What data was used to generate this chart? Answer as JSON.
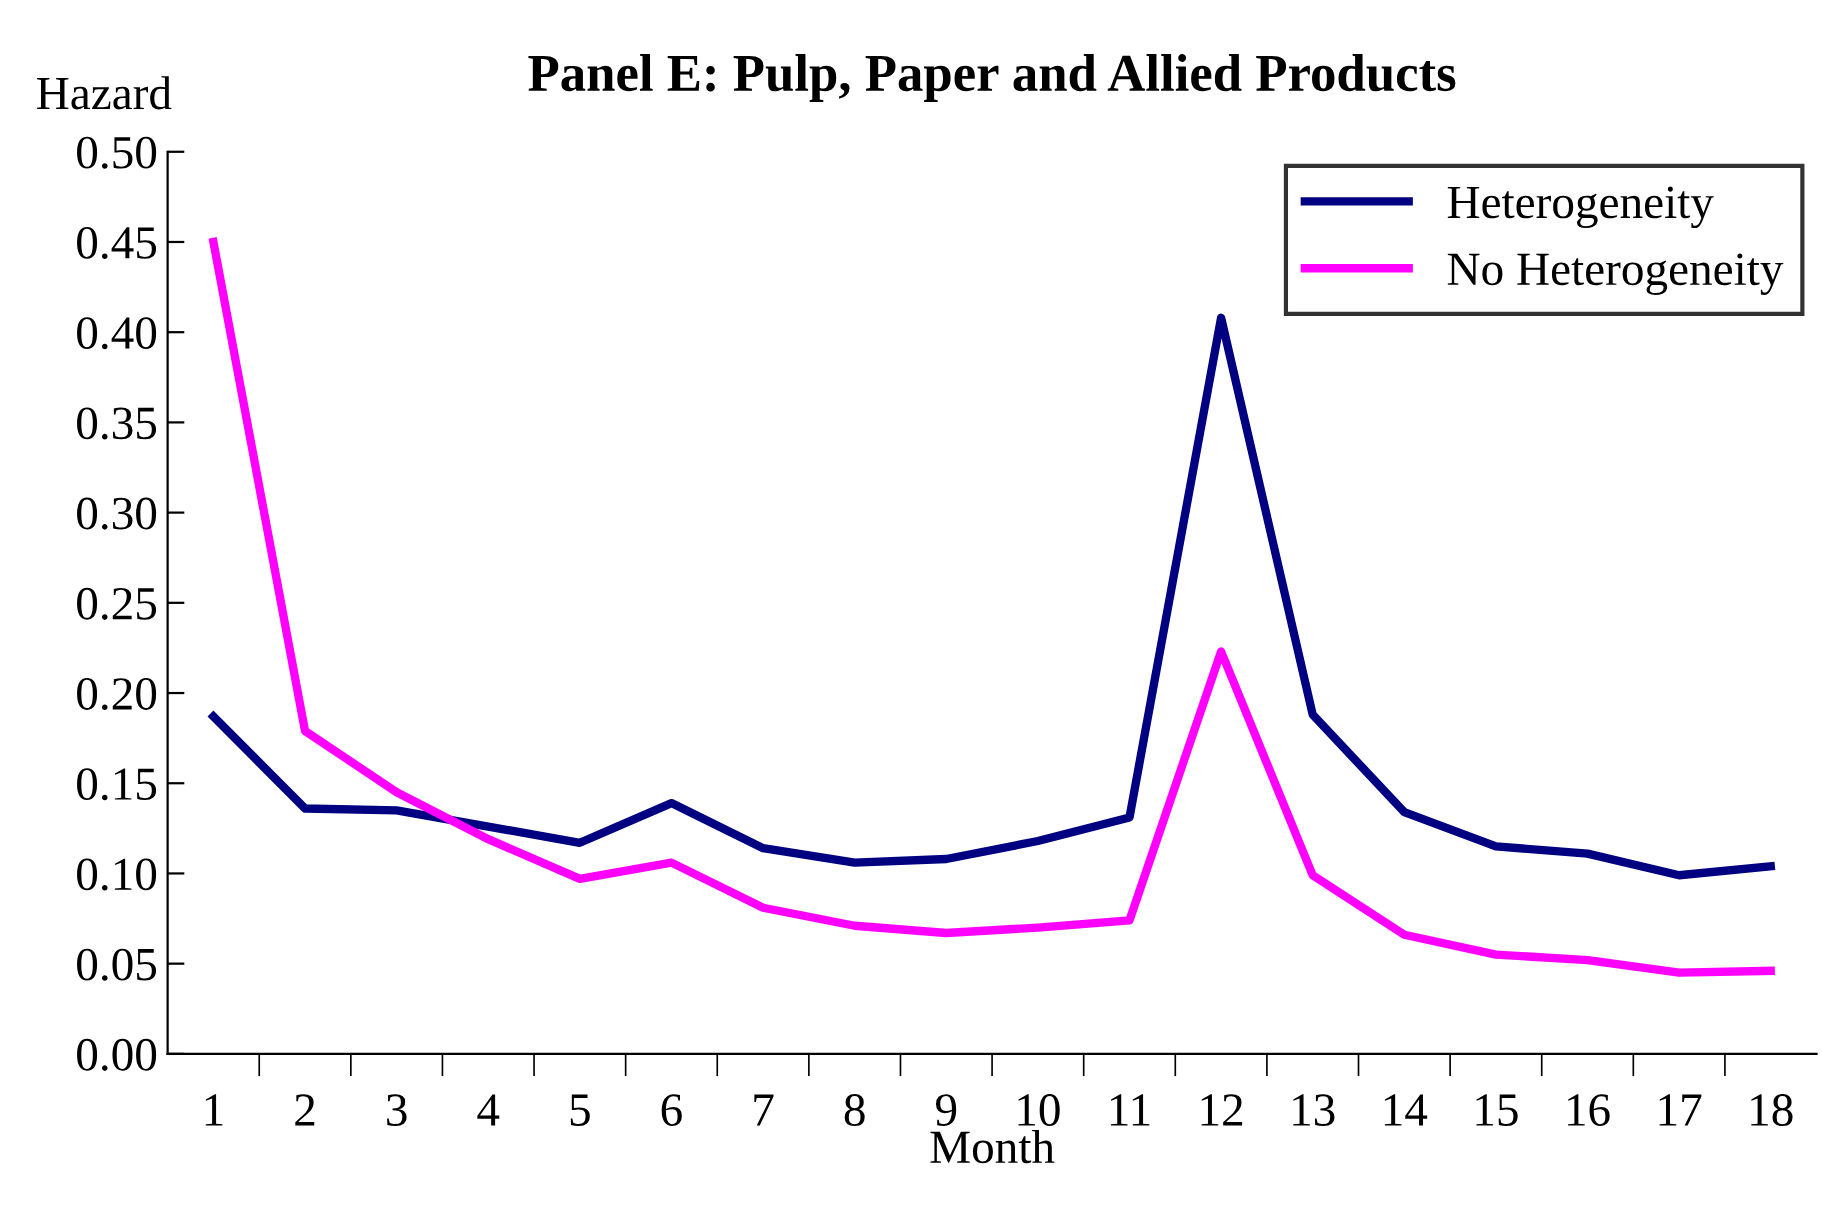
{
  "chart_data": {
    "type": "line",
    "title": "Panel E: Pulp, Paper and Allied Products",
    "ylabel": "Hazard",
    "xlabel": "Month",
    "categories": [
      "1",
      "2",
      "3",
      "4",
      "5",
      "6",
      "7",
      "8",
      "9",
      "10",
      "11",
      "12",
      "13",
      "14",
      "15",
      "16",
      "17",
      "18"
    ],
    "series": [
      {
        "name": "Heterogeneity",
        "color": "#000080",
        "values": [
          0.187,
          0.136,
          0.135,
          0.126,
          0.117,
          0.139,
          0.114,
          0.106,
          0.108,
          0.118,
          0.131,
          0.408,
          0.188,
          0.134,
          0.115,
          0.111,
          0.099,
          0.104
        ]
      },
      {
        "name": "No Heterogeneity",
        "color": "#ff00ff",
        "values": [
          0.45,
          0.179,
          0.145,
          0.119,
          0.097,
          0.106,
          0.081,
          0.071,
          0.067,
          0.07,
          0.074,
          0.223,
          0.099,
          0.066,
          0.055,
          0.052,
          0.045,
          0.046
        ]
      }
    ],
    "ylim": [
      0,
      0.5
    ],
    "yticks": [
      {
        "value": 0,
        "label": "0.00"
      },
      {
        "value": 0.05,
        "label": "0.05"
      },
      {
        "value": 0.1,
        "label": "0.10"
      },
      {
        "value": 0.15,
        "label": "0.15"
      },
      {
        "value": 0.2,
        "label": "0.20"
      },
      {
        "value": 0.25,
        "label": "0.25"
      },
      {
        "value": 0.3,
        "label": "0.30"
      },
      {
        "value": 0.35,
        "label": "0.35"
      },
      {
        "value": 0.4,
        "label": "0.40"
      },
      {
        "value": 0.45,
        "label": "0.45"
      },
      {
        "value": 0.5,
        "label": "0.50"
      }
    ],
    "grid": false,
    "legend": "top right",
    "marker": "none",
    "line_style": "solid"
  }
}
